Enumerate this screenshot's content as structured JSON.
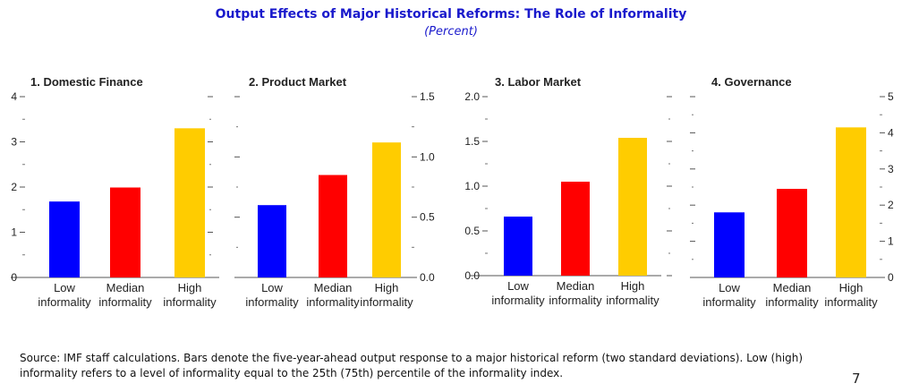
{
  "title": "Output Effects of Major Historical Reforms: The Role of Informality",
  "subtitle": "(Percent)",
  "colors": {
    "low": "#0000ff",
    "median": "#ff0000",
    "high": "#ffcc00",
    "title": "#1a1acc"
  },
  "chart_data": [
    {
      "type": "bar",
      "title": "1. Domestic Finance",
      "categories": [
        [
          "Low",
          "informality"
        ],
        [
          "Median",
          "informality"
        ],
        [
          "High",
          "informality"
        ]
      ],
      "values": [
        1.68,
        1.99,
        3.3
      ],
      "axis": "left",
      "ylim": [
        0,
        4
      ],
      "ticks": [
        "0",
        "1",
        "2",
        "3",
        "4"
      ],
      "tick_values": [
        0,
        1,
        2,
        3,
        4
      ]
    },
    {
      "type": "bar",
      "title": "2. Product Market",
      "categories": [
        [
          "Low",
          "informality"
        ],
        [
          "Median",
          "informality"
        ],
        [
          "High",
          "informality"
        ]
      ],
      "values": [
        0.6,
        0.85,
        1.12
      ],
      "axis": "right",
      "ylim": [
        0,
        1.5
      ],
      "ticks": [
        "0.0",
        "0.5",
        "1.0",
        "1.5"
      ],
      "tick_values": [
        0,
        0.5,
        1.0,
        1.5
      ]
    },
    {
      "type": "bar",
      "title": "3. Labor Market",
      "categories": [
        [
          "Low",
          "informality"
        ],
        [
          "Median",
          "informality"
        ],
        [
          "High",
          "informality"
        ]
      ],
      "values": [
        0.66,
        1.05,
        1.54
      ],
      "axis": "left",
      "ylim": [
        0,
        2.0
      ],
      "ticks": [
        "0.0",
        "0.5",
        "1.0",
        "1.5",
        "2.0"
      ],
      "tick_values": [
        0,
        0.5,
        1.0,
        1.5,
        2.0
      ]
    },
    {
      "type": "bar",
      "title": "4. Governance",
      "categories": [
        [
          "Low",
          "informality"
        ],
        [
          "Median",
          "informality"
        ],
        [
          "High",
          "informality"
        ]
      ],
      "values": [
        1.8,
        2.45,
        4.15
      ],
      "axis": "right",
      "ylim": [
        0,
        5
      ],
      "ticks": [
        "0",
        "1",
        "2",
        "3",
        "4",
        "5"
      ],
      "tick_values": [
        0,
        1,
        2,
        3,
        4,
        5
      ]
    }
  ],
  "footnote": "Source: IMF staff calculations. Bars denote the five-year-ahead output response to a major historical reform (two standard deviations). Low (high) informality refers to a level of informality equal to the 25th (75th) percentile of the informality index.",
  "page_number": "7"
}
